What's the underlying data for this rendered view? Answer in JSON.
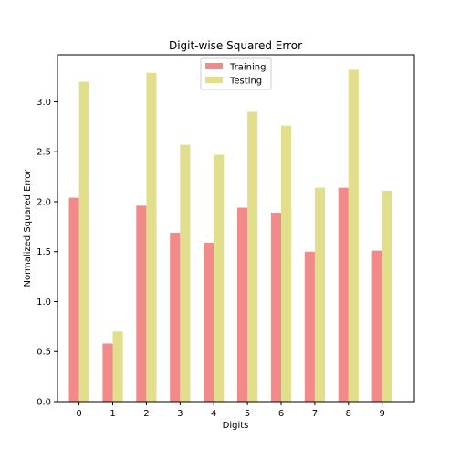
{
  "chart_data": {
    "type": "bar",
    "title": "Digit-wise Squared Error",
    "xlabel": "Digits",
    "ylabel": "Normalized Squared Error",
    "categories": [
      "0",
      "1",
      "2",
      "3",
      "4",
      "5",
      "6",
      "7",
      "8",
      "9"
    ],
    "series": [
      {
        "name": "Training",
        "color": "#f28a8a",
        "values": [
          2.04,
          0.58,
          1.96,
          1.69,
          1.59,
          1.94,
          1.89,
          1.5,
          2.14,
          1.51
        ]
      },
      {
        "name": "Testing",
        "color": "#e1df8c",
        "values": [
          3.2,
          0.7,
          3.29,
          2.57,
          2.47,
          2.9,
          2.76,
          2.14,
          3.32,
          2.11
        ]
      }
    ],
    "ylim": [
      0,
      3.47
    ],
    "yticks": [
      "0.0",
      "0.5",
      "1.0",
      "1.5",
      "2.0",
      "2.5",
      "3.0"
    ],
    "legend_position": "top-center",
    "grid": false
  }
}
